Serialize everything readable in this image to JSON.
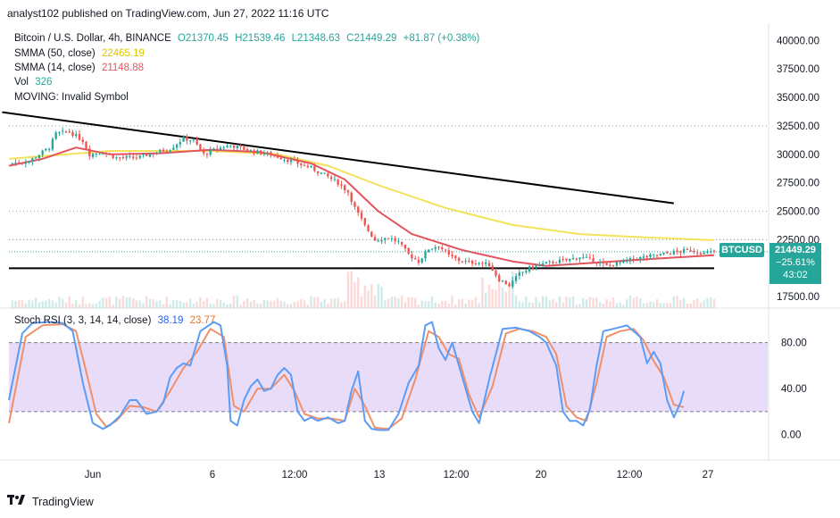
{
  "header": {
    "publisher": "analyst102 published on TradingView.com, Jun 27, 2022 11:16 UTC"
  },
  "legend": {
    "symbol": "Bitcoin / U.S. Dollar, 4h, BINANCE",
    "open": "O21370.45",
    "high": "H21539.46",
    "low": "L21348.63",
    "close": "C21449.29",
    "change": "+81.87 (+0.38%)",
    "smma50_label": "SMMA (50, close)",
    "smma50_value": "22465.19",
    "smma14_label": "SMMA (14, close)",
    "smma14_value": "21148.88",
    "vol_label": "Vol",
    "vol_value": "326",
    "moving_label": "MOVING: Invalid Symbol"
  },
  "price_tag": {
    "symbol": "BTCUSD",
    "price": "21449.29",
    "change": "−25.61%",
    "timer": "43:02"
  },
  "osc_legend": {
    "label": "Stoch RSI (3, 3, 14, 14, close)",
    "k": "38.19",
    "d": "23.77"
  },
  "footer": {
    "brand": "TradingView"
  },
  "colors": {
    "bg": "#ffffff",
    "up": "#26a69a",
    "down": "#ef5350",
    "smma50": "#f4e35a",
    "smma14": "#e4545e",
    "stoch_k": "#5b9cf6",
    "stoch_d": "#f0906a",
    "band": "#e4d3f7",
    "tag": "#26a69a"
  },
  "chart_data": [
    {
      "type": "candlestick",
      "title": "Bitcoin / U.S. Dollar, 4h, BINANCE",
      "x_ticks": [
        "Jun",
        "6",
        "12:00",
        "13",
        "12:00",
        "20",
        "12:00",
        "27"
      ],
      "y_ticks": [
        "17500.00",
        "20000.00",
        "22500.00",
        "25000.00",
        "27500.00",
        "30000.00",
        "32500.00",
        "35000.00",
        "37500.00",
        "40000.00"
      ],
      "ylim": [
        16500,
        41200
      ],
      "close_path": [
        [
          0,
          29200
        ],
        [
          6,
          29400
        ],
        [
          12,
          30600
        ],
        [
          14,
          31800
        ],
        [
          18,
          32000
        ],
        [
          22,
          31200
        ],
        [
          24,
          30000
        ],
        [
          28,
          30200
        ],
        [
          32,
          29700
        ],
        [
          38,
          29700
        ],
        [
          44,
          30200
        ],
        [
          48,
          30500
        ],
        [
          52,
          31400
        ],
        [
          55,
          31200
        ],
        [
          58,
          30000
        ],
        [
          62,
          30500
        ],
        [
          66,
          30800
        ],
        [
          72,
          30300
        ],
        [
          78,
          30000
        ],
        [
          84,
          29400
        ],
        [
          90,
          28800
        ],
        [
          94,
          28200
        ],
        [
          98,
          27500
        ],
        [
          101,
          26700
        ],
        [
          103,
          25300
        ],
        [
          106,
          23700
        ],
        [
          109,
          22500
        ],
        [
          113,
          22700
        ],
        [
          116,
          22300
        ],
        [
          119,
          21200
        ],
        [
          122,
          20600
        ],
        [
          125,
          21700
        ],
        [
          128,
          22000
        ],
        [
          131,
          21100
        ],
        [
          134,
          20700
        ],
        [
          137,
          20500
        ],
        [
          140,
          20500
        ],
        [
          143,
          20300
        ],
        [
          146,
          19000
        ],
        [
          149,
          18500
        ],
        [
          152,
          19500
        ],
        [
          155,
          20000
        ],
        [
          158,
          20300
        ],
        [
          163,
          20600
        ],
        [
          166,
          20700
        ],
        [
          170,
          21000
        ],
        [
          174,
          20700
        ],
        [
          178,
          20200
        ],
        [
          182,
          20500
        ],
        [
          186,
          20800
        ],
        [
          192,
          21100
        ],
        [
          198,
          21400
        ],
        [
          203,
          21600
        ],
        [
          207,
          21300
        ],
        [
          210,
          21450
        ]
      ],
      "series": [
        {
          "name": "SMMA (50, close)",
          "last": 22465.19,
          "values": [
            [
              0,
              29600
            ],
            [
              30,
              30300
            ],
            [
              60,
              30300
            ],
            [
              80,
              30000
            ],
            [
              95,
              29000
            ],
            [
              110,
              27300
            ],
            [
              130,
              25300
            ],
            [
              150,
              23800
            ],
            [
              170,
              23000
            ],
            [
              190,
              22700
            ],
            [
              210,
              22465
            ]
          ]
        },
        {
          "name": "SMMA (14, close)",
          "last": 21148.88,
          "values": [
            [
              0,
              29000
            ],
            [
              10,
              29600
            ],
            [
              20,
              30600
            ],
            [
              30,
              30000
            ],
            [
              45,
              30100
            ],
            [
              60,
              30400
            ],
            [
              75,
              30200
            ],
            [
              90,
              29200
            ],
            [
              100,
              27800
            ],
            [
              110,
              25000
            ],
            [
              120,
              23000
            ],
            [
              135,
              21600
            ],
            [
              150,
              20600
            ],
            [
              160,
              20200
            ],
            [
              175,
              20500
            ],
            [
              190,
              20800
            ],
            [
              210,
              21149
            ]
          ]
        }
      ],
      "volume": {
        "label": "Vol",
        "last": 326
      },
      "lines": [
        {
          "kind": "trendline",
          "from": [
            -2,
            33700
          ],
          "to": [
            198,
            25700
          ]
        },
        {
          "kind": "horizontal",
          "value": 20000
        }
      ]
    },
    {
      "type": "line",
      "title": "Stoch RSI (3, 3, 14, 14, close)",
      "y_ticks": [
        "0.00",
        "40.00",
        "80.00"
      ],
      "ylim": [
        -22,
        110
      ],
      "bands": [
        20,
        80
      ],
      "series": [
        {
          "name": "K",
          "last": 38.19,
          "values": [
            [
              0,
              30
            ],
            [
              4,
              88
            ],
            [
              7,
              97
            ],
            [
              12,
              98
            ],
            [
              16,
              97
            ],
            [
              19,
              90
            ],
            [
              22,
              45
            ],
            [
              25,
              10
            ],
            [
              28,
              5
            ],
            [
              30,
              8
            ],
            [
              33,
              16
            ],
            [
              36,
              30
            ],
            [
              38,
              30
            ],
            [
              41,
              18
            ],
            [
              44,
              20
            ],
            [
              46,
              28
            ],
            [
              48,
              50
            ],
            [
              50,
              58
            ],
            [
              52,
              62
            ],
            [
              54,
              60
            ],
            [
              57,
              90
            ],
            [
              61,
              98
            ],
            [
              63,
              95
            ],
            [
              65,
              60
            ],
            [
              66,
              12
            ],
            [
              68,
              8
            ],
            [
              70,
              30
            ],
            [
              72,
              42
            ],
            [
              74,
              48
            ],
            [
              76,
              38
            ],
            [
              78,
              40
            ],
            [
              80,
              52
            ],
            [
              82,
              58
            ],
            [
              84,
              52
            ],
            [
              86,
              20
            ],
            [
              88,
              12
            ],
            [
              90,
              15
            ],
            [
              92,
              12
            ],
            [
              95,
              15
            ],
            [
              98,
              10
            ],
            [
              100,
              12
            ],
            [
              102,
              38
            ],
            [
              104,
              55
            ],
            [
              106,
              12
            ],
            [
              108,
              5
            ],
            [
              110,
              4
            ],
            [
              113,
              4
            ],
            [
              116,
              18
            ],
            [
              119,
              45
            ],
            [
              122,
              60
            ],
            [
              124,
              95
            ],
            [
              126,
              98
            ],
            [
              128,
              75
            ],
            [
              130,
              65
            ],
            [
              132,
              80
            ],
            [
              134,
              60
            ],
            [
              136,
              40
            ],
            [
              138,
              20
            ],
            [
              140,
              10
            ],
            [
              143,
              48
            ],
            [
              147,
              92
            ],
            [
              151,
              93
            ],
            [
              155,
              90
            ],
            [
              158,
              85
            ],
            [
              160,
              80
            ],
            [
              163,
              60
            ],
            [
              165,
              20
            ],
            [
              167,
              12
            ],
            [
              169,
              12
            ],
            [
              171,
              8
            ],
            [
              173,
              22
            ],
            [
              175,
              60
            ],
            [
              177,
              90
            ],
            [
              180,
              92
            ],
            [
              184,
              95
            ],
            [
              186,
              90
            ],
            [
              188,
              85
            ],
            [
              190,
              62
            ],
            [
              192,
              72
            ],
            [
              194,
              62
            ],
            [
              196,
              30
            ],
            [
              198,
              15
            ],
            [
              200,
              28
            ],
            [
              201,
              38
            ]
          ]
        },
        {
          "name": "D",
          "last": 23.77,
          "values": [
            [
              0,
              10
            ],
            [
              5,
              85
            ],
            [
              10,
              95
            ],
            [
              16,
              96
            ],
            [
              20,
              90
            ],
            [
              23,
              55
            ],
            [
              26,
              18
            ],
            [
              29,
              7
            ],
            [
              32,
              12
            ],
            [
              36,
              25
            ],
            [
              40,
              24
            ],
            [
              44,
              20
            ],
            [
              48,
              38
            ],
            [
              52,
              58
            ],
            [
              56,
              72
            ],
            [
              60,
              92
            ],
            [
              64,
              85
            ],
            [
              67,
              25
            ],
            [
              70,
              20
            ],
            [
              74,
              40
            ],
            [
              78,
              40
            ],
            [
              82,
              52
            ],
            [
              85,
              38
            ],
            [
              88,
              18
            ],
            [
              92,
              14
            ],
            [
              96,
              14
            ],
            [
              100,
              12
            ],
            [
              103,
              40
            ],
            [
              106,
              25
            ],
            [
              109,
              6
            ],
            [
              113,
              5
            ],
            [
              117,
              14
            ],
            [
              121,
              48
            ],
            [
              125,
              90
            ],
            [
              128,
              85
            ],
            [
              131,
              70
            ],
            [
              134,
              66
            ],
            [
              137,
              35
            ],
            [
              140,
              15
            ],
            [
              144,
              42
            ],
            [
              148,
              88
            ],
            [
              152,
              92
            ],
            [
              156,
              90
            ],
            [
              160,
              85
            ],
            [
              163,
              70
            ],
            [
              166,
              25
            ],
            [
              169,
              15
            ],
            [
              172,
              12
            ],
            [
              175,
              45
            ],
            [
              178,
              85
            ],
            [
              182,
              90
            ],
            [
              186,
              92
            ],
            [
              189,
              82
            ],
            [
              192,
              64
            ],
            [
              195,
              50
            ],
            [
              198,
              26
            ],
            [
              201,
              24
            ]
          ]
        }
      ]
    }
  ]
}
